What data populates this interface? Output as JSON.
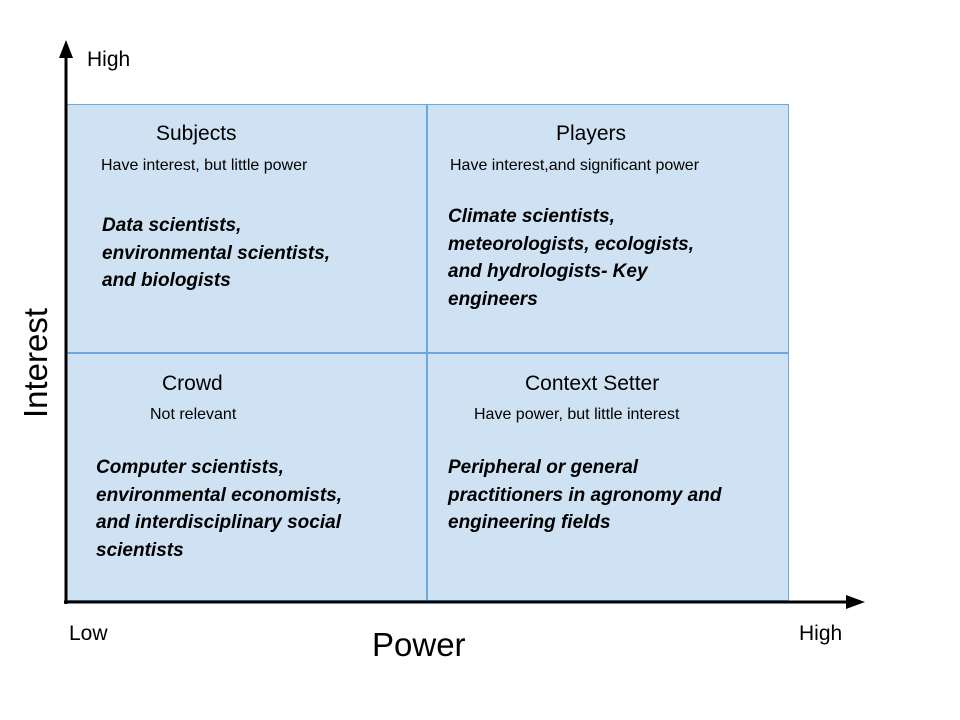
{
  "axes": {
    "y_title": "Interest",
    "x_title": "Power",
    "y_high": "High",
    "x_low": "Low",
    "x_high": "High"
  },
  "quadrants": {
    "subjects": {
      "title": "Subjects",
      "desc": "Have interest, but little power",
      "lines": [
        "Data scientists,",
        "environmental scientists,",
        "and biologists"
      ]
    },
    "players": {
      "title": "Players",
      "desc": "Have interest,and significant power",
      "lines": [
        "Climate scientists,",
        "meteorologists, ecologists,",
        "and hydrologists- Key",
        "engineers"
      ]
    },
    "crowd": {
      "title": "Crowd",
      "desc": "Not relevant",
      "lines": [
        "Computer scientists,",
        "environmental economists,",
        "and interdisciplinary social",
        "scientists"
      ]
    },
    "context_setter": {
      "title": "Context Setter",
      "desc": "Have power, but little interest",
      "lines": [
        "Peripheral or general",
        "practitioners in agronomy and",
        "engineering fields"
      ]
    }
  },
  "colors": {
    "quadrant_fill": "#cfe2f3",
    "quadrant_border": "#6fa8dc",
    "axis": "#000000"
  }
}
